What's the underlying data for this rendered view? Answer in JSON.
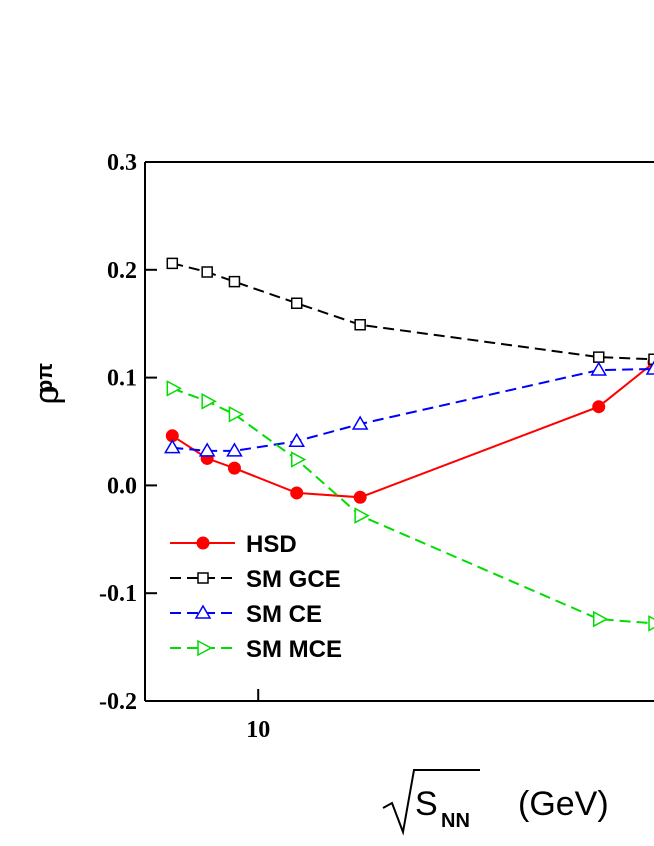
{
  "chart_data": {
    "type": "line",
    "y_label": "ρ",
    "y_label_sub": "pπ",
    "x_label": "S",
    "x_label_sub": "NN",
    "x_label_unit": "(GeV)",
    "x_log": true,
    "xlim": [
      5.44,
      84
    ],
    "ylim": [
      -0.2,
      0.3
    ],
    "xticks": [
      10
    ],
    "yticks": [
      {
        "value": -0.2,
        "label": "-0.2"
      },
      -0.1,
      {
        "value": 0,
        "label": "0.0"
      },
      0.1,
      0.2,
      0.3
    ],
    "legend": "lower left",
    "x": [
      6.3,
      7.6,
      8.8,
      12.3,
      17.3,
      62.4,
      84
    ],
    "series": [
      {
        "name": "HSD",
        "color": "#ff0000",
        "dash": "solid",
        "marker": "circle",
        "values": [
          0.046,
          0.025,
          0.016,
          -0.007,
          -0.011,
          0.073,
          0.114
        ]
      },
      {
        "name": "SM GCE",
        "color": "#000000",
        "dash": "dashed",
        "marker": "square",
        "values": [
          0.206,
          0.198,
          0.189,
          0.169,
          0.149,
          0.119,
          0.117
        ]
      },
      {
        "name": "SM CE",
        "color": "#0000ff",
        "dash": "dashed",
        "marker": "triangle-up",
        "values": [
          0.035,
          0.032,
          0.032,
          0.041,
          0.057,
          0.107,
          0.108
        ]
      },
      {
        "name": "SM MCE",
        "color": "#00dd00",
        "dash": "dashed",
        "marker": "triangle-right",
        "values": [
          0.09,
          0.078,
          0.066,
          0.024,
          -0.028,
          -0.124,
          -0.128
        ]
      }
    ]
  }
}
